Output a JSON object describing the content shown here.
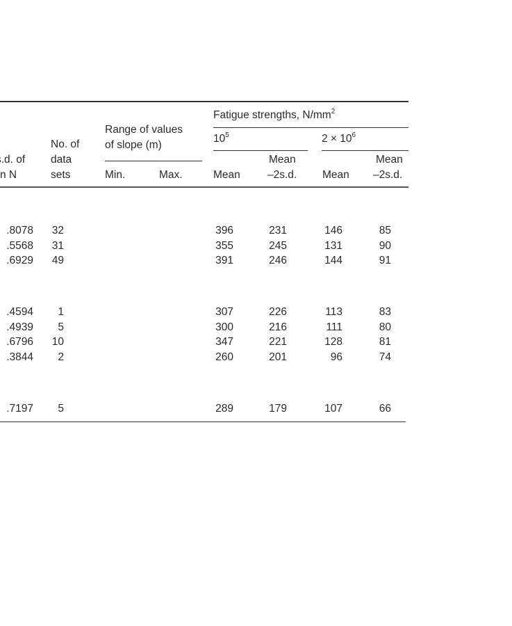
{
  "header": {
    "sd_col": [
      "s.d. of",
      "n N"
    ],
    "data_sets_col": [
      "No. of",
      "data",
      "sets"
    ],
    "slope_group": [
      "Range of values",
      "of slope (m)"
    ],
    "slope_min": "Min.",
    "slope_max": "Max.",
    "fatigue_group": "Fatigue strengths, N/mm",
    "fatigue_group_sup": "2",
    "cycles_1_base": "10",
    "cycles_1_sup": "5",
    "cycles_2_base": "2 × 10",
    "cycles_2_sup": "6",
    "mean": "Mean",
    "mean_2sd_line1": "Mean",
    "mean_2sd_line2": "–2s.d."
  },
  "rows": [
    {
      "sd": ".8078",
      "sets": "32",
      "m5": "396",
      "m5sd": "231",
      "m6": "146",
      "m6sd": "85"
    },
    {
      "sd": ".5568",
      "sets": "31",
      "m5": "355",
      "m5sd": "245",
      "m6": "131",
      "m6sd": "90"
    },
    {
      "sd": ".6929",
      "sets": "49",
      "m5": "391",
      "m5sd": "246",
      "m6": "144",
      "m6sd": "91"
    },
    {
      "sd": ".4594",
      "sets": "1",
      "m5": "307",
      "m5sd": "226",
      "m6": "113",
      "m6sd": "83"
    },
    {
      "sd": ".4939",
      "sets": "5",
      "m5": "300",
      "m5sd": "216",
      "m6": "111",
      "m6sd": "80"
    },
    {
      "sd": ".6796",
      "sets": "10",
      "m5": "347",
      "m5sd": "221",
      "m6": "128",
      "m6sd": "81"
    },
    {
      "sd": ".3844",
      "sets": "2",
      "m5": "260",
      "m5sd": "201",
      "m6": "96",
      "m6sd": "74"
    },
    {
      "sd": ".7197",
      "sets": "5",
      "m5": "289",
      "m5sd": "179",
      "m6": "107",
      "m6sd": "66"
    }
  ]
}
